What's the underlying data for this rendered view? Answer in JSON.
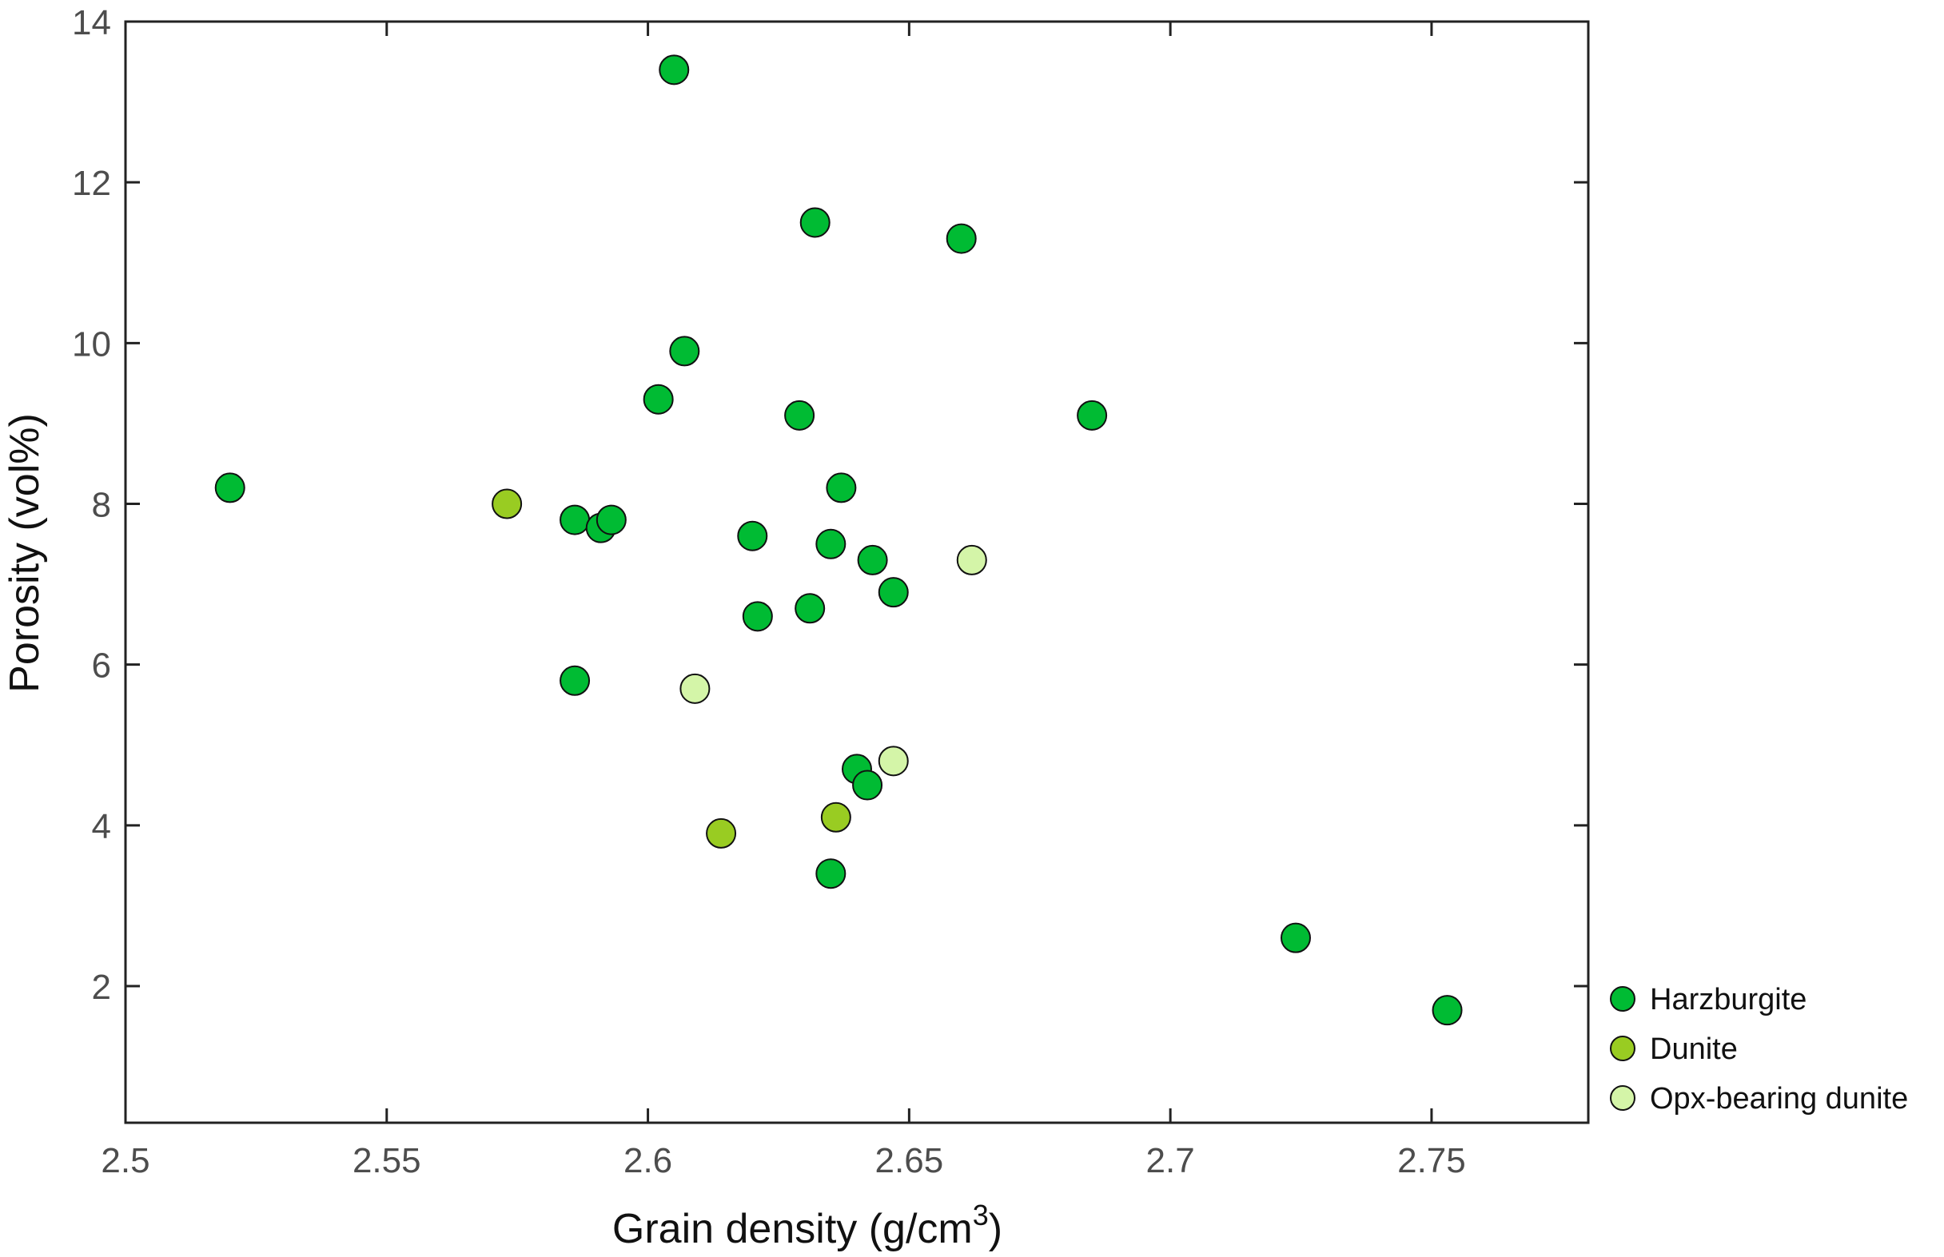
{
  "chart_data": {
    "type": "scatter",
    "title": "",
    "xlabel": "Grain density (g/cm",
    "xlabel_superscript": "3",
    "xlabel_suffix": ")",
    "ylabel": "Porosity (vol%)",
    "xlim": [
      2.5,
      2.78
    ],
    "ylim": [
      0.3,
      14
    ],
    "xticks": [
      2.5,
      2.55,
      2.6,
      2.65,
      2.7,
      2.75
    ],
    "xtick_labels": [
      "2.5",
      "2.55",
      "2.6",
      "2.65",
      "2.7",
      "2.75"
    ],
    "yticks": [
      2,
      4,
      6,
      8,
      10,
      12,
      14
    ],
    "ytick_labels": [
      "2",
      "4",
      "6",
      "8",
      "10",
      "12",
      "14"
    ],
    "grid": false,
    "legend_position": "bottom-right outside",
    "series": [
      {
        "name": "Harzburgite",
        "color": "#00bb33",
        "points": [
          [
            2.52,
            8.2
          ],
          [
            2.605,
            13.4
          ],
          [
            2.632,
            11.5
          ],
          [
            2.66,
            11.3
          ],
          [
            2.607,
            9.9
          ],
          [
            2.602,
            9.3
          ],
          [
            2.629,
            9.1
          ],
          [
            2.685,
            9.1
          ],
          [
            2.637,
            8.2
          ],
          [
            2.586,
            7.8
          ],
          [
            2.591,
            7.7
          ],
          [
            2.593,
            7.8
          ],
          [
            2.62,
            7.6
          ],
          [
            2.635,
            7.5
          ],
          [
            2.643,
            7.3
          ],
          [
            2.647,
            6.9
          ],
          [
            2.631,
            6.7
          ],
          [
            2.621,
            6.6
          ],
          [
            2.586,
            5.8
          ],
          [
            2.64,
            4.7
          ],
          [
            2.642,
            4.5
          ],
          [
            2.635,
            3.4
          ],
          [
            2.724,
            2.6
          ],
          [
            2.753,
            1.7
          ]
        ]
      },
      {
        "name": "Dunite",
        "color": "#99cc22",
        "points": [
          [
            2.573,
            8.0
          ],
          [
            2.614,
            3.9
          ],
          [
            2.636,
            4.1
          ]
        ]
      },
      {
        "name": "Opx-bearing dunite",
        "color": "#d4f5a8",
        "points": [
          [
            2.662,
            7.3
          ],
          [
            2.609,
            5.7
          ],
          [
            2.647,
            4.8
          ]
        ]
      }
    ]
  }
}
